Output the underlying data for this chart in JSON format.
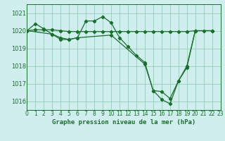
{
  "background_color": "#d0eeee",
  "grid_color": "#99ccbb",
  "line_color": "#1a6e2e",
  "title": "Graphe pression niveau de la mer (hPa)",
  "xlim": [
    0,
    23
  ],
  "ylim": [
    1015.5,
    1021.5
  ],
  "yticks": [
    1016,
    1017,
    1018,
    1019,
    1020,
    1021
  ],
  "xticks": [
    0,
    1,
    2,
    3,
    4,
    5,
    6,
    7,
    8,
    9,
    10,
    11,
    12,
    13,
    14,
    15,
    16,
    17,
    18,
    19,
    20,
    21,
    22,
    23
  ],
  "series1_x": [
    0,
    1,
    2,
    3,
    4,
    5,
    6,
    7,
    8,
    9,
    10,
    11,
    12,
    13,
    14,
    15,
    16,
    17,
    18,
    19,
    20
  ],
  "series1_y": [
    1020.0,
    1020.4,
    1020.1,
    1019.8,
    1019.5,
    1019.5,
    1019.6,
    1020.55,
    1020.55,
    1020.8,
    1020.45,
    1019.6,
    1019.1,
    1018.6,
    1018.2,
    1016.6,
    1016.1,
    1015.85,
    1017.15,
    1018.0,
    1020.0
  ],
  "series2_x": [
    0,
    1,
    2,
    3,
    4,
    5,
    6,
    7,
    8,
    9,
    10,
    11,
    12,
    13,
    14,
    15,
    16,
    17,
    18,
    19,
    20,
    21,
    22
  ],
  "series2_y": [
    1020.0,
    1020.05,
    1020.05,
    1020.05,
    1020.0,
    1019.95,
    1019.95,
    1019.95,
    1019.95,
    1019.95,
    1019.95,
    1019.95,
    1019.95,
    1019.95,
    1019.95,
    1019.95,
    1019.95,
    1019.95,
    1019.95,
    1019.95,
    1020.0,
    1020.0,
    1020.0
  ],
  "series3_x": [
    0,
    3,
    4,
    5,
    6,
    10,
    14,
    15,
    16,
    17,
    18,
    19,
    20,
    22
  ],
  "series3_y": [
    1020.0,
    1019.8,
    1019.6,
    1019.5,
    1019.6,
    1019.75,
    1018.1,
    1016.6,
    1016.55,
    1016.15,
    1017.15,
    1017.9,
    1020.0,
    1020.0
  ]
}
